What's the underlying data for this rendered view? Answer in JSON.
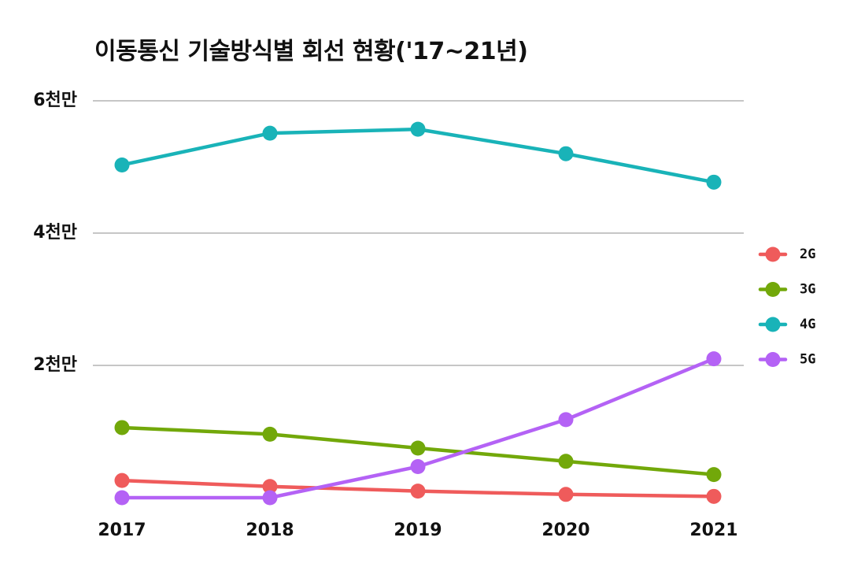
{
  "chart_data": {
    "type": "line",
    "title": "이동통신 기술방식별 회선 현황('17~21년)",
    "xlabel": "",
    "ylabel": "",
    "x": [
      "2017",
      "2018",
      "2019",
      "2020",
      "2021"
    ],
    "ylim": [
      0,
      62000000
    ],
    "y_ticks": [
      {
        "value": 20000000,
        "label": "2천만"
      },
      {
        "value": 40000000,
        "label": "4천만"
      },
      {
        "value": 60000000,
        "label": "6천만"
      }
    ],
    "grid": "horizontal major lines at labeled ticks",
    "legend_position": "right",
    "series": [
      {
        "name": "2G",
        "color": "#ef5b5b",
        "values": [
          2600000,
          1700000,
          1000000,
          500000,
          200000
        ]
      },
      {
        "name": "3G",
        "color": "#72a80a",
        "values": [
          10600000,
          9600000,
          7500000,
          5500000,
          3500000
        ]
      },
      {
        "name": "4G",
        "color": "#19b3b8",
        "values": [
          50300000,
          55100000,
          55700000,
          52000000,
          47700000
        ]
      },
      {
        "name": "5G",
        "color": "#b462f5",
        "values": [
          0,
          0,
          4700000,
          11800000,
          21000000
        ]
      }
    ]
  }
}
